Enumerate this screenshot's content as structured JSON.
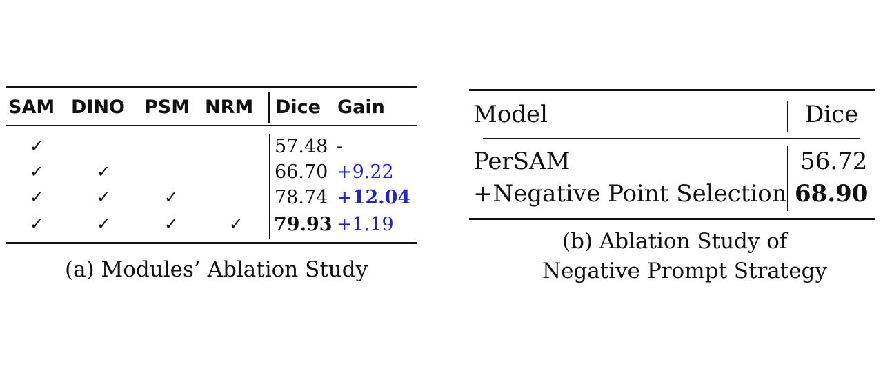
{
  "table_a": {
    "headers": [
      "SAM",
      "DINO",
      "PSM",
      "NRM",
      "Dice",
      "Gain"
    ],
    "check_symbol": "✓",
    "rows": [
      {
        "checks": [
          true,
          false,
          false,
          false
        ],
        "dice": "57.48",
        "gain": "-"
      },
      {
        "checks": [
          true,
          true,
          false,
          false
        ],
        "dice": "66.70",
        "gain": "+9.22"
      },
      {
        "checks": [
          true,
          true,
          true,
          false
        ],
        "dice": "78.74",
        "gain": "+12.04"
      },
      {
        "checks": [
          true,
          true,
          true,
          true
        ],
        "dice": "79.93",
        "gain": "+1.19"
      }
    ],
    "caption": "(a) Modules’ Ablation Study"
  },
  "table_b": {
    "headers": [
      "Model",
      "Dice"
    ],
    "rows": [
      {
        "model": "PerSAM",
        "dice": "56.72"
      },
      {
        "model": "+Negative Point Selection",
        "dice": "68.90"
      }
    ],
    "caption_line1": "(b) Ablation Study of",
    "caption_line2": "Negative Prompt Strategy"
  },
  "colors": {
    "gain": "#2222dd",
    "text": "#111111"
  }
}
